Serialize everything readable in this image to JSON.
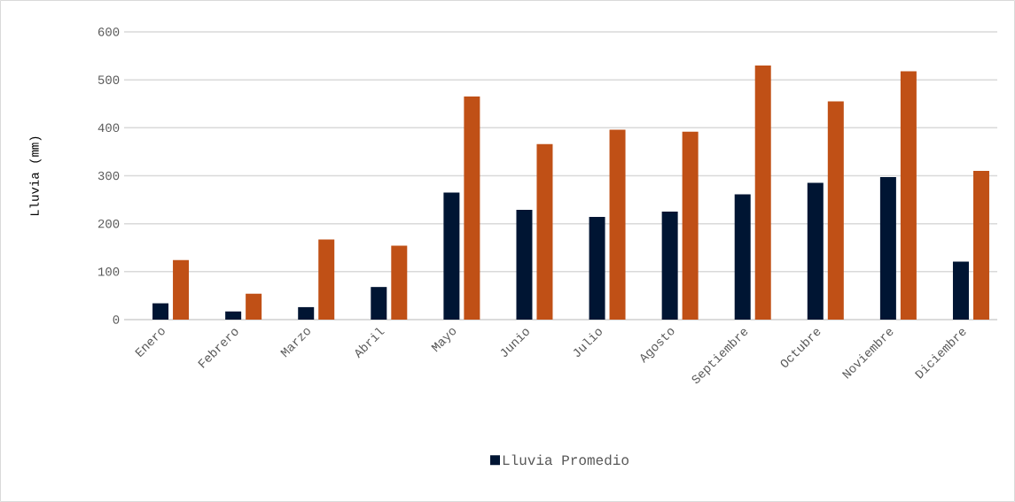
{
  "chart_data": {
    "type": "bar",
    "ylabel": "Lluvia (mm)",
    "categories": [
      "Enero",
      "Febrero",
      "Marzo",
      "Abril",
      "Mayo",
      "Junio",
      "Julio",
      "Agosto",
      "Septiembre",
      "Octubre",
      "Noviembre",
      "Diciembre"
    ],
    "series": [
      {
        "name": "Lluvia Promedio",
        "color": "#001533",
        "values": [
          34,
          17,
          26,
          68,
          265,
          229,
          214,
          225,
          261,
          285,
          297,
          121
        ]
      },
      {
        "color": "#c05016",
        "values": [
          124,
          54,
          167,
          154,
          465,
          366,
          396,
          392,
          530,
          455,
          518,
          310
        ]
      }
    ],
    "ylim": [
      0,
      600
    ],
    "yticks": [
      0,
      100,
      200,
      300,
      400,
      500,
      600
    ],
    "grid": "y",
    "legend": "bottom"
  }
}
